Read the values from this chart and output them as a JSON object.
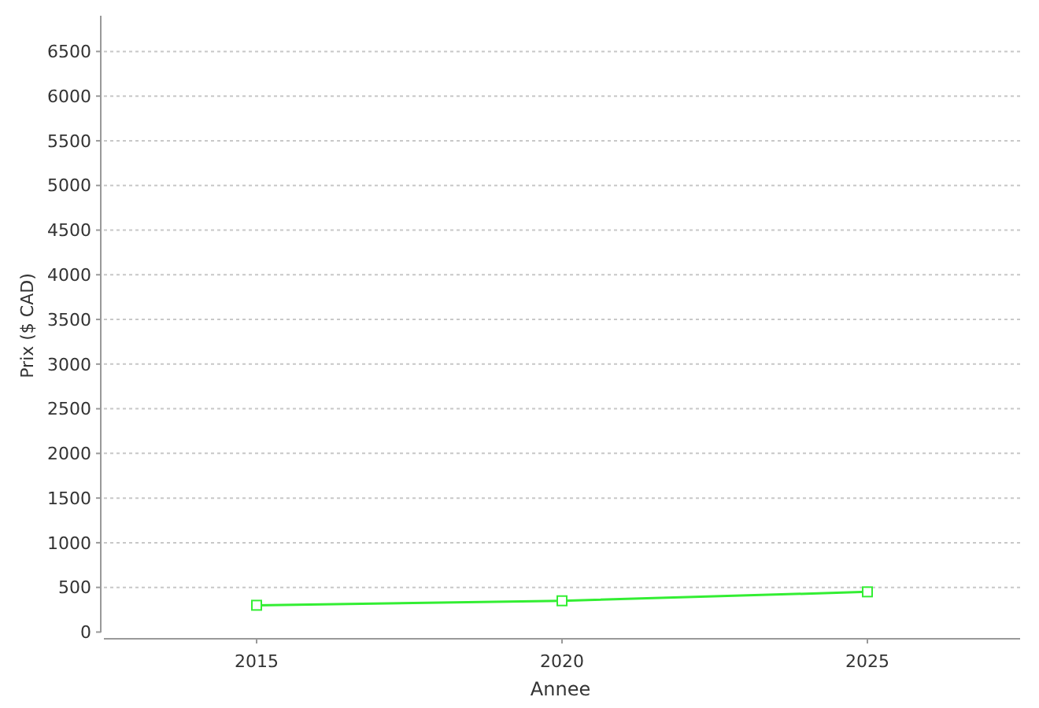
{
  "chart_data": {
    "type": "line",
    "xlabel": "Annee",
    "ylabel": "Prix ($ CAD)",
    "x": [
      2015,
      2020,
      2025
    ],
    "series": [
      {
        "color": "#33ee33",
        "values": [
          300,
          350,
          450
        ]
      }
    ],
    "xlim": [
      2012.5,
      2027.5
    ],
    "xticks": [
      2015,
      2020,
      2025
    ],
    "ylim": [
      -40,
      6900
    ],
    "yticks": [
      0,
      500,
      1000,
      1500,
      2000,
      2500,
      3000,
      3500,
      4000,
      4500,
      5000,
      5500,
      6000,
      6500
    ],
    "grid": "y",
    "marker": "square",
    "line_style": "solid"
  }
}
